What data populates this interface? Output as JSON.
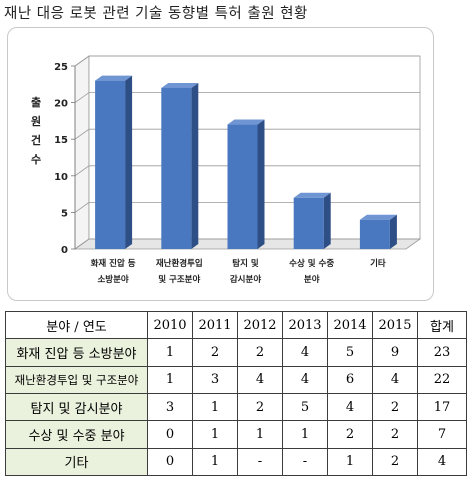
{
  "title": "재난 대응 로봇 관련 기술 동향별 특허 출원 현황",
  "chart_data": {
    "type": "bar",
    "categories": [
      "화재 진압 등\n소방분야",
      "재난환경투입\n및 구조분야",
      "탐지 및\n감시분야",
      "수상 및 수중\n분야",
      "기타"
    ],
    "values": [
      23,
      22,
      17,
      7,
      4
    ],
    "ylabel": "출원건수",
    "ylim": [
      0,
      25
    ],
    "yticks": [
      0,
      5,
      10,
      15,
      20,
      25
    ],
    "grid": true,
    "bar_color": "#4a78c0"
  },
  "table": {
    "corner": "분야 / 연도",
    "years": [
      "2010",
      "2011",
      "2012",
      "2013",
      "2014",
      "2015"
    ],
    "total_label": "합계",
    "rows": [
      {
        "label": "화재 진압 등 소방분야",
        "values": [
          "1",
          "2",
          "2",
          "4",
          "5",
          "9"
        ],
        "total": "23"
      },
      {
        "label": "재난환경투입 및 구조분야",
        "values": [
          "1",
          "3",
          "4",
          "4",
          "6",
          "4"
        ],
        "total": "22"
      },
      {
        "label": "탐지 및 감시분야",
        "values": [
          "3",
          "1",
          "2",
          "5",
          "4",
          "2"
        ],
        "total": "17"
      },
      {
        "label": "수상 및 수중 분야",
        "values": [
          "0",
          "1",
          "1",
          "1",
          "2",
          "2"
        ],
        "total": "7"
      },
      {
        "label": "기타",
        "values": [
          "0",
          "1",
          "-",
          "-",
          "1",
          "2"
        ],
        "total": "4"
      }
    ]
  },
  "colors": {
    "row_label_bg": "#eaf1dc",
    "bar_front": "#4a78c0",
    "bar_side": "#2d4f86",
    "bar_top": "#6f95d2"
  }
}
